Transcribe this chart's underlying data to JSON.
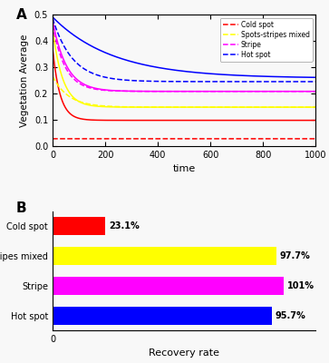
{
  "panel_A": {
    "xlabel": "time",
    "ylabel": "Vegetation Average",
    "xlim": [
      0,
      1000
    ],
    "ylim": [
      0,
      0.5
    ],
    "yticks": [
      0.0,
      0.1,
      0.2,
      0.3,
      0.4,
      0.5
    ],
    "xticks": [
      0,
      200,
      400,
      600,
      800,
      1000
    ],
    "curves": [
      {
        "color": "#ff0000",
        "ls": "-",
        "start": 0.37,
        "end": 0.098,
        "decay": 28
      },
      {
        "color": "#ff0000",
        "ls": "--",
        "start": 0.028,
        "end": 0.028,
        "decay": 99999
      },
      {
        "color": "#ffff00",
        "ls": "-",
        "start": 0.445,
        "end": 0.148,
        "decay": 38
      },
      {
        "color": "#ffff00",
        "ls": "--",
        "start": 0.265,
        "end": 0.148,
        "decay": 60
      },
      {
        "color": "#ff00ff",
        "ls": "-",
        "start": 0.476,
        "end": 0.208,
        "decay": 52
      },
      {
        "color": "#ff00ff",
        "ls": "--",
        "start": 0.46,
        "end": 0.208,
        "decay": 48
      },
      {
        "color": "#0000ff",
        "ls": "-",
        "start": 0.49,
        "end": 0.258,
        "decay": 230
      },
      {
        "color": "#0000ff",
        "ls": "--",
        "start": 0.485,
        "end": 0.245,
        "decay": 75
      }
    ],
    "legend": [
      {
        "label": "Cold spot",
        "color": "#ff0000",
        "ls": "--"
      },
      {
        "label": "Spots-stripes mixed",
        "color": "#ffff00",
        "ls": "--"
      },
      {
        "label": "Stripe",
        "color": "#ff00ff",
        "ls": "--"
      },
      {
        "label": "Hot spot",
        "color": "#0000ff",
        "ls": "--"
      }
    ]
  },
  "panel_B": {
    "xlabel": "Recovery rate",
    "categories": [
      "Hot spot",
      "Stripe",
      "Spots-stripes mixed",
      "Cold spot"
    ],
    "values": [
      95.7,
      101.0,
      97.7,
      23.1
    ],
    "colors": [
      "#0000ff",
      "#ff00ff",
      "#ffff00",
      "#ff0000"
    ],
    "labels": [
      "95.7%",
      "101%",
      "97.7%",
      "23.1%"
    ],
    "xlim": [
      0,
      115
    ]
  }
}
